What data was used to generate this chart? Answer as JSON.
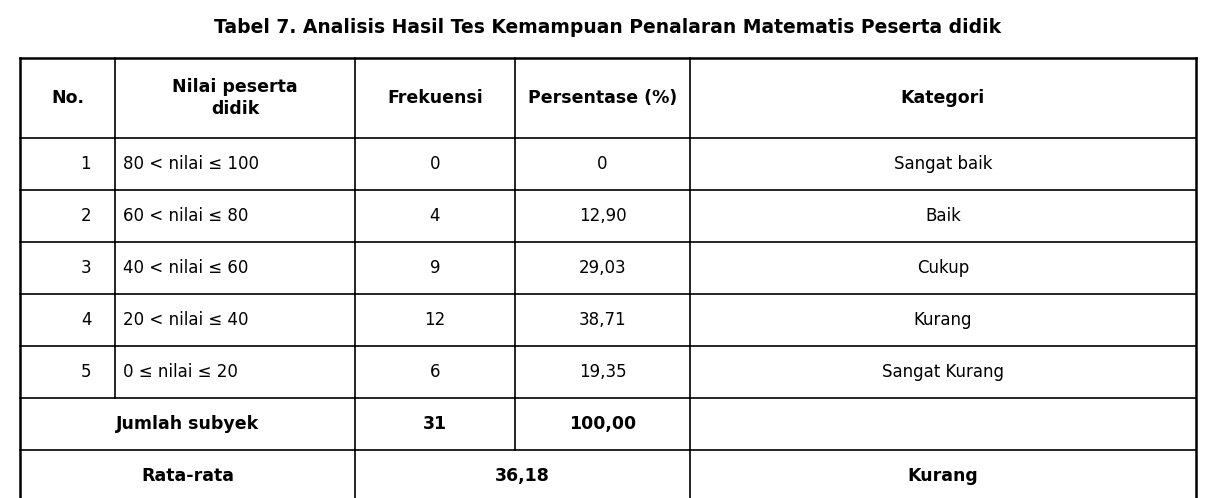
{
  "title": "Tabel 7. Analisis Hasil Tes Kemampuan Penalaran Matematis Peserta didik",
  "title_fontsize": 13.5,
  "col_headers": [
    "No.",
    "Nilai peserta\ndidik",
    "Frekuensi",
    "Persentase (%)",
    "Kategori"
  ],
  "rows": [
    [
      "1",
      "80 < nilai ≤ 100",
      "0",
      "0",
      "Sangat baik"
    ],
    [
      "2",
      "60 < nilai ≤ 80",
      "4",
      "12,90",
      "Baik"
    ],
    [
      "3",
      "40 < nilai ≤ 60",
      "9",
      "29,03",
      "Cukup"
    ],
    [
      "4",
      "20 < nilai ≤ 40",
      "12",
      "38,71",
      "Kurang"
    ],
    [
      "5",
      "0 ≤ nilai ≤ 20",
      "6",
      "19,35",
      "Sangat Kurang"
    ]
  ],
  "bg_color": "#ffffff",
  "border_color": "#000000",
  "text_color": "#000000",
  "header_fontsize": 12.5,
  "cell_fontsize": 12,
  "footer_fontsize": 12.5
}
